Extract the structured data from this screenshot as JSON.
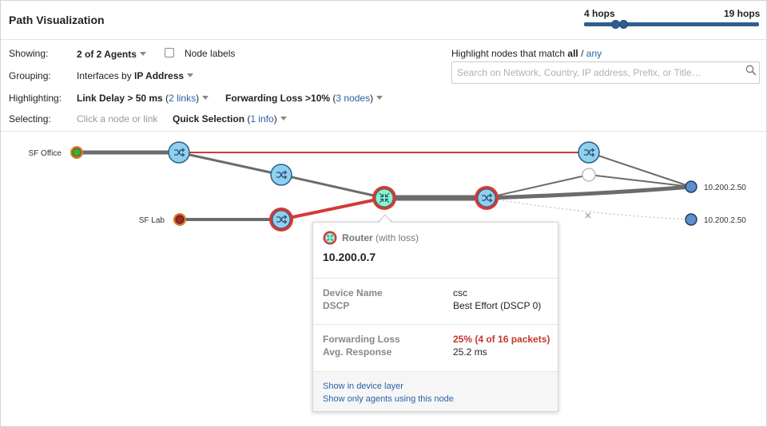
{
  "header": {
    "title": "Path Visualization",
    "hops_min": "4 hops",
    "hops_max": "19 hops"
  },
  "controls": {
    "showing": {
      "label": "Showing:",
      "value": "2 of 2 Agents"
    },
    "node_labels": "Node labels",
    "grouping": {
      "label": "Grouping:",
      "prefix": "Interfaces by ",
      "value": "IP Address"
    },
    "highlighting": {
      "label": "Highlighting:",
      "delay": "Link Delay > 50 ms",
      "delay_count": "2 links",
      "loss": "Forwarding Loss >10%",
      "loss_count": "3 nodes"
    },
    "selecting": {
      "label": "Selecting:",
      "hint": "Click a node or link",
      "quick": "Quick Selection",
      "quick_count": "1 info"
    }
  },
  "highlight_match": {
    "text": "Highlight nodes that match ",
    "all": "all",
    "sep": " / ",
    "any": "any",
    "placeholder": "Search on Network, Country, IP address, Prefix, or Title…"
  },
  "graph": {
    "agents": [
      "SF Office",
      "SF Lab"
    ],
    "destinations": [
      "10.200.2.50",
      "10.200.2.50"
    ]
  },
  "popup": {
    "type": "Router",
    "type_note": "(with loss)",
    "ip": "10.200.0.7",
    "device_name_key": "Device Name",
    "device_name_val": "csc",
    "dscp_key": "DSCP",
    "dscp_val": "Best Effort (DSCP 0)",
    "loss_key": "Forwarding Loss",
    "loss_val": "25% (4 of 16 packets)",
    "response_key": "Avg. Response",
    "response_val": "25.2 ms",
    "link_device_layer": "Show in device layer",
    "link_agents": "Show only agents using this node"
  },
  "colors": {
    "accent": "#2e5f8e",
    "link": "#2a62a8",
    "loss_red": "#d33a35",
    "router_fill": "#8fd0ef",
    "router_stroke": "#2b5d86",
    "selected_fill": "#8ff0d6",
    "dest_fill": "#5b8fcf"
  }
}
